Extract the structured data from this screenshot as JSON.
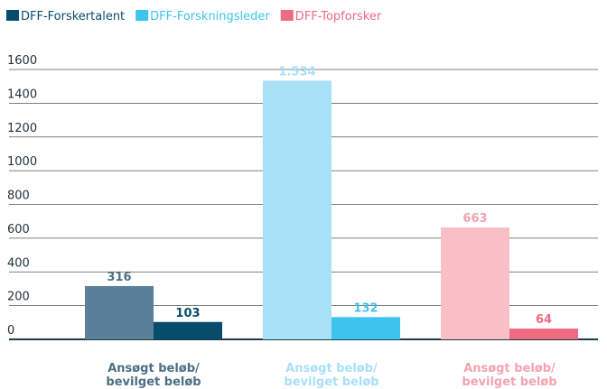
{
  "chart_data": {
    "type": "grouped-bar",
    "ylim": [
      0,
      1600
    ],
    "yticks": [
      0,
      200,
      400,
      600,
      800,
      1000,
      1200,
      1400,
      1600
    ],
    "grid": true,
    "series": [
      {
        "name": "DFF-Forskertalent",
        "color": "#074c6b",
        "light_color": "#5a7f98",
        "label_color": "#4d6f86",
        "label": [
          "Ansøgt beløb/",
          "bevilget beløb"
        ],
        "values": [
          316,
          103
        ]
      },
      {
        "name": "DFF-Forskningsleder",
        "color": "#3ec3ef",
        "light_color": "#a8e0f8",
        "label_color": "#a8e0f8",
        "label": [
          "Ansøgt beløb/",
          "bevilget beløb"
        ],
        "values": [
          1534,
          132
        ],
        "value_labels": [
          "1.534",
          "132"
        ]
      },
      {
        "name": "DFF-Topforsker",
        "color": "#ee6b82",
        "light_color": "#f8bfc6",
        "label_color": "#f5a3b0",
        "label": [
          "Ansøgt beløb/",
          "bevilget beløb"
        ],
        "values": [
          663,
          64
        ]
      }
    ]
  }
}
